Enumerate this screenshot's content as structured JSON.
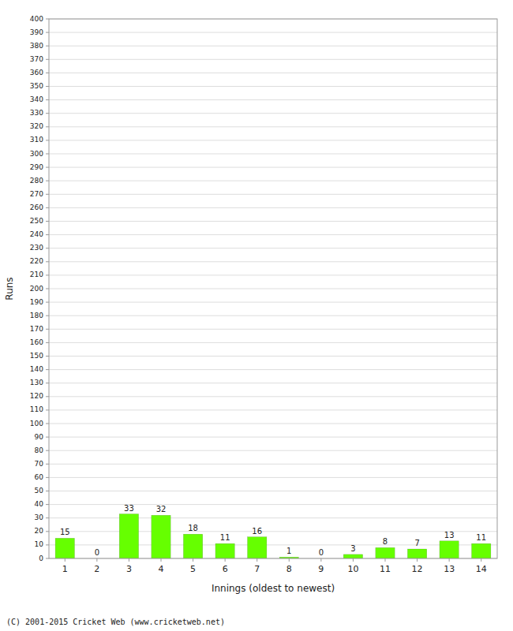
{
  "chart_data": {
    "type": "bar",
    "xlabel": "Innings (oldest to newest)",
    "ylabel": "Runs",
    "categories": [
      1,
      2,
      3,
      4,
      5,
      6,
      7,
      8,
      9,
      10,
      11,
      12,
      13,
      14
    ],
    "values": [
      15,
      0,
      33,
      32,
      18,
      11,
      16,
      1,
      0,
      3,
      8,
      7,
      13,
      11
    ],
    "color": "#66ff00",
    "ylim": [
      0,
      400
    ],
    "yticks": [
      0,
      10,
      20,
      30,
      40,
      50,
      60,
      70,
      80,
      90,
      100,
      110,
      120,
      130,
      140,
      150,
      160,
      170,
      180,
      190,
      200,
      210,
      220,
      230,
      240,
      250,
      260,
      270,
      280,
      290,
      300,
      310,
      320,
      330,
      340,
      350,
      360,
      370,
      380,
      390,
      400
    ],
    "grid": true,
    "data_labels": true,
    "annotations": [
      "(C) 2001-2015 Cricket Web (www.cricketweb.net)"
    ]
  }
}
